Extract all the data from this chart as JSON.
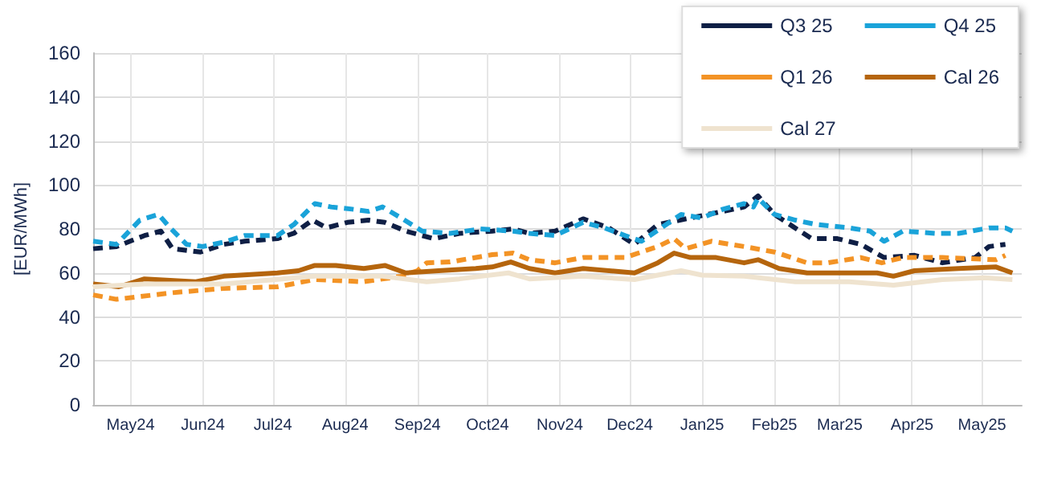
{
  "chart_data": {
    "type": "line",
    "ylabel": "[EUR/MWh]",
    "ylim": [
      0,
      160
    ],
    "yticks": [
      0,
      20,
      40,
      60,
      80,
      100,
      120,
      140,
      160
    ],
    "xlim": [
      "2024-04-29",
      "2025-06-01"
    ],
    "xticks": [
      {
        "value": "2024-05-15",
        "label": "May24"
      },
      {
        "value": "2024-06-15",
        "label": "Jun24"
      },
      {
        "value": "2024-07-15",
        "label": "Jul24"
      },
      {
        "value": "2024-08-15",
        "label": "Aug24"
      },
      {
        "value": "2024-09-15",
        "label": "Sep24"
      },
      {
        "value": "2024-10-15",
        "label": "Oct24"
      },
      {
        "value": "2024-11-15",
        "label": "Nov24"
      },
      {
        "value": "2024-12-15",
        "label": "Dec24"
      },
      {
        "value": "2025-01-15",
        "label": "Jan25"
      },
      {
        "value": "2025-02-15",
        "label": "Feb25"
      },
      {
        "value": "2025-03-15",
        "label": "Mar25"
      },
      {
        "value": "2025-04-15",
        "label": "Apr25"
      },
      {
        "value": "2025-05-15",
        "label": "May25"
      }
    ],
    "grid": true,
    "legend": "top right",
    "marker": "none",
    "series": [
      {
        "name": "Q3 25",
        "color": "#0f1f45",
        "line_style": "dashed",
        "x": [
          "2024-04-29",
          "2024-05-09",
          "2024-05-21",
          "2024-05-28",
          "2024-06-02",
          "2024-06-14",
          "2024-06-24",
          "2024-07-03",
          "2024-07-17",
          "2024-07-24",
          "2024-08-01",
          "2024-08-07",
          "2024-08-16",
          "2024-08-25",
          "2024-09-01",
          "2024-09-10",
          "2024-09-22",
          "2024-10-03",
          "2024-10-17",
          "2024-10-26",
          "2024-11-02",
          "2024-11-13",
          "2024-11-25",
          "2024-12-06",
          "2024-12-17",
          "2024-12-27",
          "2025-01-10",
          "2025-01-24",
          "2025-02-02",
          "2025-02-08",
          "2025-02-15",
          "2025-02-26",
          "2025-03-03",
          "2025-03-14",
          "2025-03-24",
          "2025-04-03",
          "2025-04-16",
          "2025-04-28",
          "2025-05-12",
          "2025-05-18",
          "2025-05-25"
        ],
        "values": [
          71,
          72,
          77,
          79,
          71,
          69.5,
          73,
          74.4,
          75.6,
          78,
          84,
          80.5,
          83,
          84,
          83,
          79,
          75.6,
          78,
          79,
          80,
          78,
          79,
          84.6,
          80.5,
          73,
          82,
          85,
          88,
          90,
          95,
          86.6,
          79,
          75.6,
          75.6,
          73,
          67,
          68,
          64.6,
          67,
          72,
          73
        ]
      },
      {
        "name": "Q4 25",
        "color": "#1aa3d9",
        "line_style": "dashed",
        "x": [
          "2024-04-29",
          "2024-05-09",
          "2024-05-19",
          "2024-05-27",
          "2024-06-01",
          "2024-06-08",
          "2024-06-15",
          "2024-06-24",
          "2024-07-03",
          "2024-07-17",
          "2024-07-24",
          "2024-08-02",
          "2024-08-09",
          "2024-08-18",
          "2024-08-25",
          "2024-08-31",
          "2024-09-08",
          "2024-09-17",
          "2024-09-29",
          "2024-10-12",
          "2024-10-26",
          "2024-11-02",
          "2024-11-13",
          "2024-11-25",
          "2024-12-04",
          "2024-12-13",
          "2024-12-20",
          "2025-01-06",
          "2025-01-15",
          "2025-01-24",
          "2025-02-02",
          "2025-02-06",
          "2025-02-08",
          "2025-02-15",
          "2025-02-24",
          "2025-03-05",
          "2025-03-19",
          "2025-03-28",
          "2025-04-03",
          "2025-04-11",
          "2025-04-25",
          "2025-05-05",
          "2025-05-18",
          "2025-05-25",
          "2025-05-28"
        ],
        "values": [
          74.4,
          73,
          84,
          86.6,
          80.5,
          73,
          72,
          74,
          77,
          77,
          82,
          91.5,
          90,
          89,
          88,
          90,
          85,
          79,
          78,
          80,
          79,
          78,
          77,
          83,
          80.5,
          77,
          74.4,
          86.6,
          85,
          89,
          91.5,
          90,
          94,
          86.6,
          84,
          82,
          80.5,
          79,
          74.4,
          79,
          78,
          78,
          80.5,
          80.5,
          79
        ]
      },
      {
        "name": "Q1 26",
        "color": "#f39325",
        "line_style": "dashed",
        "x": [
          "2024-04-29",
          "2024-05-09",
          "2024-06-02",
          "2024-06-24",
          "2024-07-17",
          "2024-08-02",
          "2024-08-23",
          "2024-09-08",
          "2024-09-15",
          "2024-09-19",
          "2024-09-29",
          "2024-10-17",
          "2024-10-26",
          "2024-11-02",
          "2024-11-13",
          "2024-11-25",
          "2024-12-13",
          "2024-12-27",
          "2025-01-03",
          "2025-01-08",
          "2025-01-19",
          "2025-02-02",
          "2025-02-15",
          "2025-03-01",
          "2025-03-10",
          "2025-03-24",
          "2025-04-02",
          "2025-04-11",
          "2025-04-28",
          "2025-05-21",
          "2025-05-25"
        ],
        "values": [
          50,
          48,
          51,
          53,
          53.7,
          57,
          56,
          58.5,
          61,
          64.6,
          65,
          68.3,
          69,
          66,
          64.6,
          67,
          67,
          72,
          75.6,
          71,
          74.4,
          72,
          69.5,
          64.6,
          64.6,
          67,
          64.6,
          67,
          67,
          66,
          68
        ]
      },
      {
        "name": "Cal 26",
        "color": "#b5650d",
        "line_style": "solid",
        "x": [
          "2024-04-29",
          "2024-05-10",
          "2024-05-21",
          "2024-06-12",
          "2024-06-24",
          "2024-07-17",
          "2024-07-26",
          "2024-08-02",
          "2024-08-11",
          "2024-08-23",
          "2024-09-01",
          "2024-09-10",
          "2024-09-24",
          "2024-10-10",
          "2024-10-17",
          "2024-10-25",
          "2024-11-02",
          "2024-11-13",
          "2024-11-25",
          "2024-12-17",
          "2024-12-27",
          "2025-01-03",
          "2025-01-10",
          "2025-01-21",
          "2025-02-02",
          "2025-02-08",
          "2025-02-17",
          "2025-03-01",
          "2025-03-14",
          "2025-03-31",
          "2025-04-07",
          "2025-04-16",
          "2025-05-05",
          "2025-05-21",
          "2025-05-28"
        ],
        "values": [
          55,
          53.7,
          57.3,
          56,
          58.5,
          60,
          61,
          63.4,
          63.4,
          62,
          63.4,
          60,
          61,
          62,
          62.7,
          65,
          62,
          60,
          62,
          60,
          64.6,
          69,
          67,
          67,
          64.6,
          66,
          62,
          60,
          60,
          60,
          58.5,
          61,
          62,
          62.7,
          60
        ]
      },
      {
        "name": "Cal 27",
        "color": "#efe3cf",
        "line_style": "solid",
        "x": [
          "2024-04-29",
          "2024-05-21",
          "2024-06-24",
          "2024-08-02",
          "2024-08-31",
          "2024-09-19",
          "2024-10-03",
          "2024-10-24",
          "2024-11-02",
          "2024-11-25",
          "2024-12-17",
          "2025-01-06",
          "2025-01-15",
          "2025-02-02",
          "2025-02-24",
          "2025-03-19",
          "2025-04-07",
          "2025-04-28",
          "2025-05-16",
          "2025-05-28"
        ],
        "values": [
          53.7,
          55,
          55,
          58.5,
          58.5,
          56,
          57.3,
          60,
          57.3,
          58.5,
          57,
          61,
          59,
          58.5,
          56,
          56,
          54.4,
          57,
          57.8,
          57
        ]
      }
    ]
  }
}
